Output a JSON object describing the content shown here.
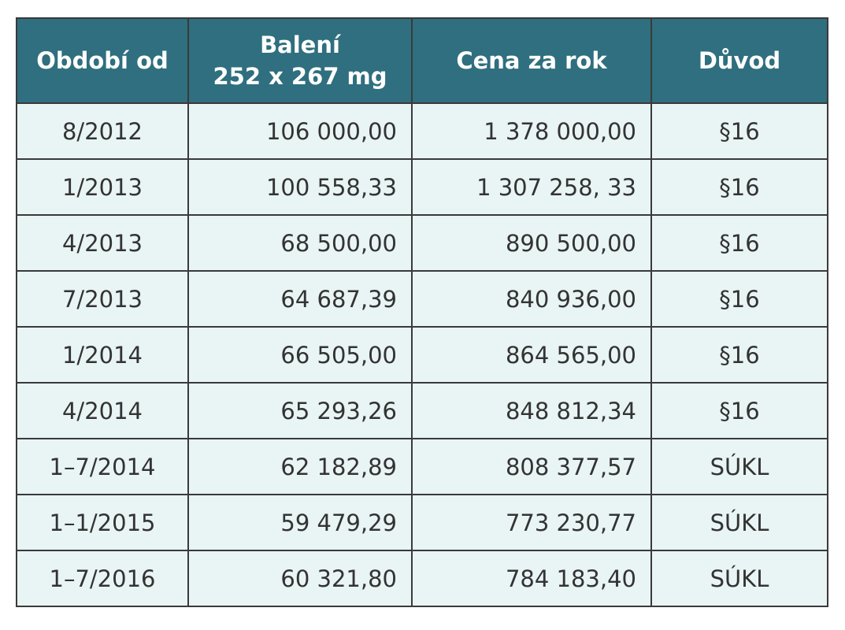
{
  "table": {
    "header": [
      [
        "Období od"
      ],
      [
        "Balení",
        "252 x 267 mg"
      ],
      [
        "Cena za rok"
      ],
      [
        "Důvod"
      ]
    ],
    "rows": [
      [
        "8/2012",
        "106 000,00",
        "1 378 000,00",
        "§16"
      ],
      [
        "1/2013",
        "100 558,33",
        "1 307 258, 33",
        "§16"
      ],
      [
        "4/2013",
        "68 500,00",
        "890 500,00",
        "§16"
      ],
      [
        "7/2013",
        "64 687,39",
        "840 936,00",
        "§16"
      ],
      [
        "1/2014",
        "66 505,00",
        "864 565,00",
        "§16"
      ],
      [
        "4/2014",
        "65 293,26",
        "848 812,34",
        "§16"
      ],
      [
        "1–7/2014",
        "62 182,89",
        "808 377,57",
        "SÚKL"
      ],
      [
        "1–1/2015",
        "59 479,29",
        "773 230,77",
        "SÚKL"
      ],
      [
        "1–7/2016",
        "60 321,80",
        "784 183,40",
        "SÚKL"
      ]
    ]
  }
}
